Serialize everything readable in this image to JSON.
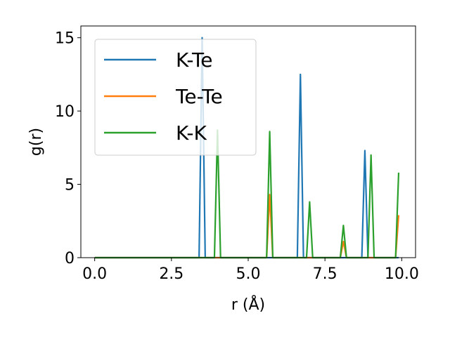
{
  "chart_data": {
    "type": "line",
    "xlabel": "r (Å)",
    "ylabel": "g(r)",
    "xlim": [
      -0.45,
      10.45
    ],
    "ylim": [
      0,
      15.8
    ],
    "xticks": [
      0.0,
      2.5,
      5.0,
      7.5,
      10.0
    ],
    "xtick_labels": [
      "0.0",
      "2.5",
      "5.0",
      "7.5",
      "10.0"
    ],
    "yticks": [
      0,
      5,
      10,
      15
    ],
    "ytick_labels": [
      "0",
      "5",
      "10",
      "15"
    ],
    "grid": false,
    "legend_position": "upper-left",
    "series": [
      {
        "name": "K-Te",
        "color": "#1f77b4",
        "x": [
          0.0,
          3.4,
          3.5,
          3.6,
          6.6,
          6.7,
          6.8,
          8.7,
          8.8,
          8.9,
          9.9
        ],
        "y": [
          0,
          0,
          15.0,
          0,
          0,
          12.5,
          0,
          0,
          7.3,
          0,
          0
        ]
      },
      {
        "name": "Te-Te",
        "color": "#ff7f0e",
        "x": [
          0.0,
          5.6,
          5.7,
          5.8,
          8.0,
          8.1,
          8.2,
          9.8,
          9.9
        ],
        "y": [
          0,
          0,
          4.3,
          0,
          0,
          1.1,
          0,
          0,
          2.9
        ]
      },
      {
        "name": "K-K",
        "color": "#2ca02c",
        "x": [
          0.0,
          3.9,
          4.0,
          4.1,
          5.6,
          5.7,
          5.8,
          6.9,
          7.0,
          7.1,
          8.0,
          8.1,
          8.2,
          8.9,
          9.0,
          9.1,
          9.8,
          9.9
        ],
        "y": [
          0,
          0,
          8.7,
          0,
          0,
          8.6,
          0,
          0,
          3.8,
          0,
          0,
          2.2,
          0,
          0,
          7.0,
          0,
          0,
          5.8
        ]
      }
    ]
  }
}
